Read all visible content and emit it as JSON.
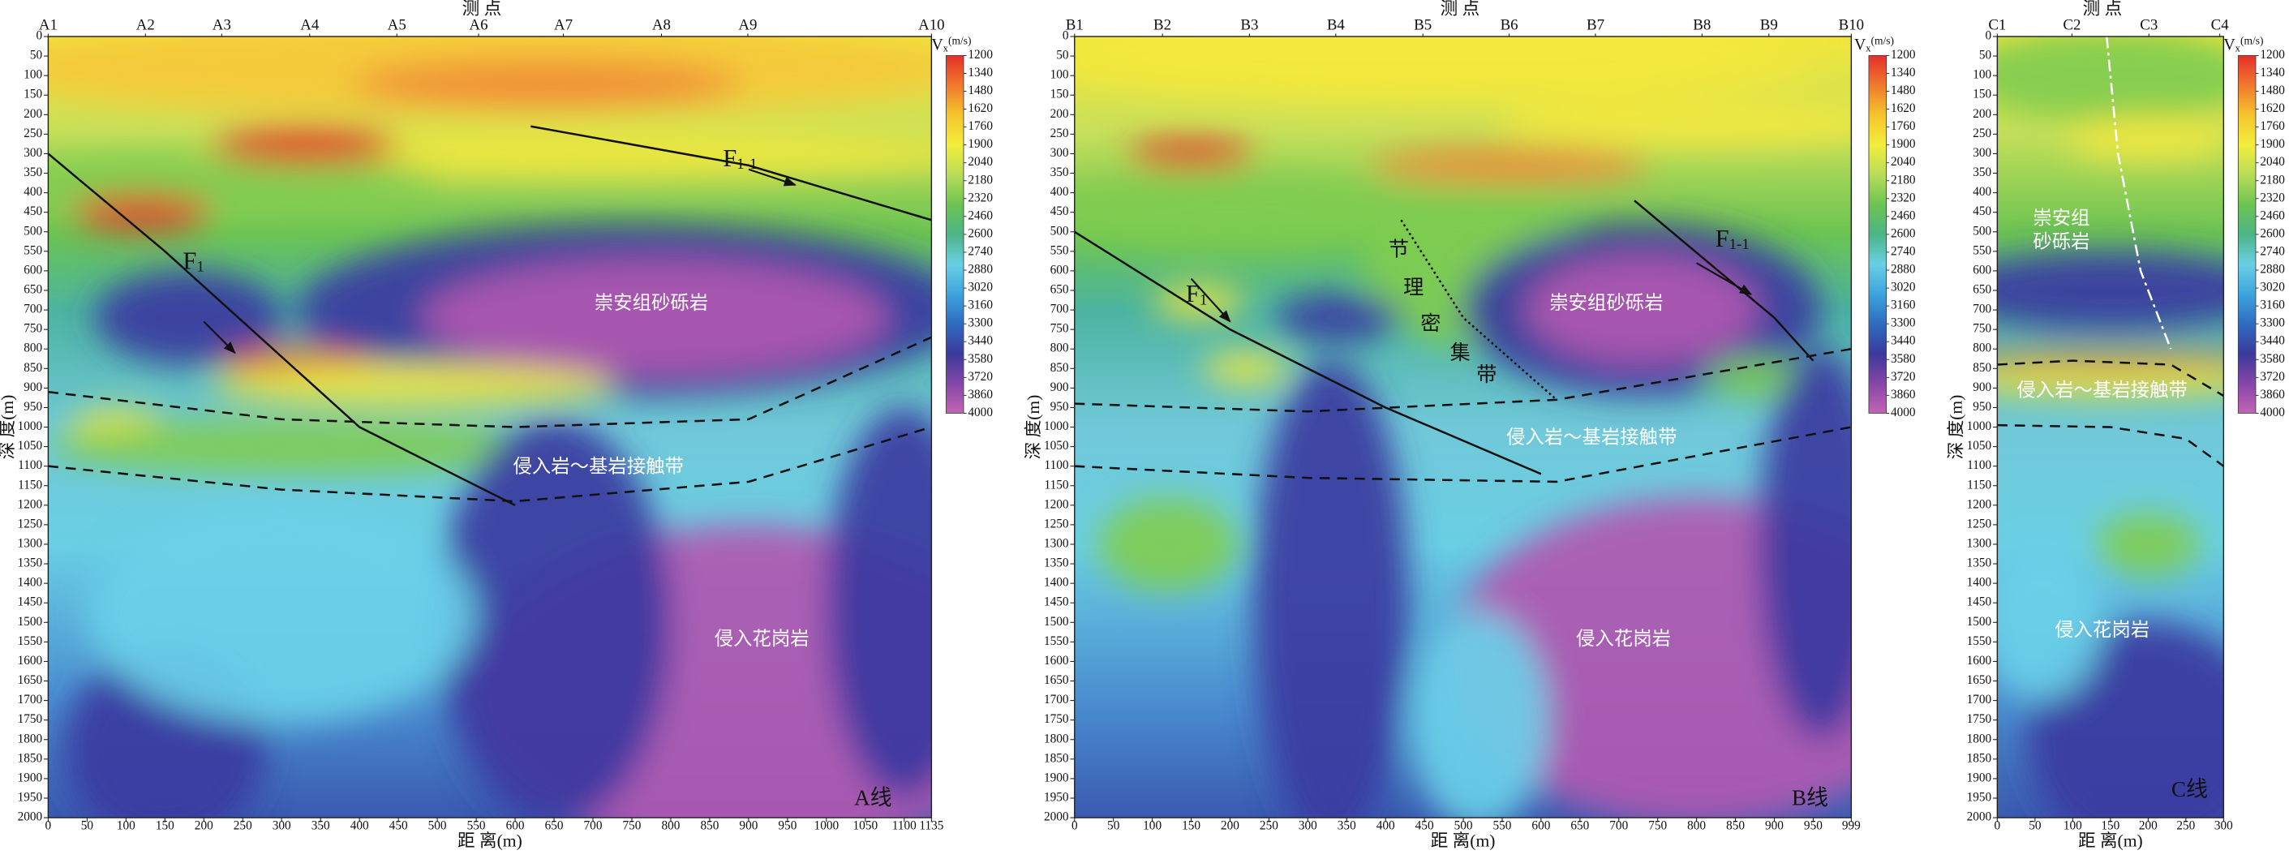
{
  "chart_data": [
    {
      "type": "heatmap",
      "title": "A线",
      "top_label": "测 点",
      "x_label": "距 离(m)",
      "y_label": "深 度(m)",
      "stations": [
        "A1",
        "A2",
        "A3",
        "A4",
        "A5",
        "A6",
        "A7",
        "A8",
        "A9",
        "A10"
      ],
      "station_x": [
        0,
        125,
        223,
        336,
        448,
        553,
        662,
        788,
        899,
        1135
      ],
      "xlim": [
        0,
        1135
      ],
      "xticks": [
        0,
        50,
        100,
        150,
        200,
        250,
        300,
        350,
        400,
        450,
        500,
        550,
        600,
        650,
        700,
        750,
        800,
        850,
        900,
        950,
        1000,
        1050,
        1100,
        1135
      ],
      "ylim": [
        0,
        2000
      ],
      "yticks": [
        0,
        50,
        100,
        150,
        200,
        250,
        300,
        350,
        400,
        450,
        500,
        550,
        600,
        650,
        700,
        750,
        800,
        850,
        900,
        950,
        1000,
        1050,
        1100,
        1150,
        1200,
        1250,
        1300,
        1350,
        1400,
        1450,
        1500,
        1550,
        1600,
        1650,
        1700,
        1750,
        1800,
        1850,
        1900,
        1950,
        2000
      ],
      "colorbar_symbol": "V",
      "colorbar_subscript": "x",
      "colorbar_unit": "(m/s)",
      "clim": [
        1200,
        4000
      ],
      "cticks": [
        1200,
        1340,
        1480,
        1620,
        1760,
        1900,
        2040,
        2180,
        2320,
        2460,
        2600,
        2740,
        2880,
        3020,
        3160,
        3300,
        3440,
        3580,
        3720,
        3860,
        4000
      ],
      "colorscale": [
        "#e5302a",
        "#f07a2c",
        "#f5c42c",
        "#f3ee3c",
        "#b8dc58",
        "#6cc452",
        "#4cb486",
        "#6acfe4",
        "#3da4de",
        "#2f6cc0",
        "#3a3a9c",
        "#8446a8",
        "#c464b4"
      ],
      "annotations": [
        "崇安组砂砾岩",
        "侵入岩～基岩接触带",
        "侵入花岗岩"
      ],
      "faults": [
        "F1",
        "F1-1"
      ]
    },
    {
      "type": "heatmap",
      "title": "B线",
      "top_label": "测 点",
      "x_label": "距 离(m)",
      "y_label": "深 度(m)",
      "stations": [
        "B1",
        "B2",
        "B3",
        "B4",
        "B5",
        "B6",
        "B7",
        "B8",
        "B9",
        "B10"
      ],
      "station_x": [
        0,
        113,
        225,
        336,
        448,
        559,
        670,
        807,
        893,
        999
      ],
      "xlim": [
        0,
        999
      ],
      "xticks": [
        0,
        50,
        100,
        150,
        200,
        250,
        300,
        350,
        400,
        450,
        500,
        550,
        600,
        650,
        700,
        750,
        800,
        850,
        900,
        950,
        999
      ],
      "ylim": [
        0,
        2000
      ],
      "yticks": [
        0,
        50,
        100,
        150,
        200,
        250,
        300,
        350,
        400,
        450,
        500,
        550,
        600,
        650,
        700,
        750,
        800,
        850,
        900,
        950,
        1000,
        1050,
        1100,
        1150,
        1200,
        1250,
        1300,
        1350,
        1400,
        1450,
        1500,
        1550,
        1600,
        1650,
        1700,
        1750,
        1800,
        1850,
        1900,
        1950,
        2000
      ],
      "colorbar_symbol": "V",
      "colorbar_subscript": "x",
      "colorbar_unit": "(m/s)",
      "clim": [
        1200,
        4000
      ],
      "cticks": [
        1200,
        1340,
        1480,
        1620,
        1760,
        1900,
        2040,
        2180,
        2320,
        2460,
        2600,
        2740,
        2880,
        3020,
        3160,
        3300,
        3440,
        3580,
        3720,
        3860,
        4000
      ],
      "colorscale": [
        "#e5302a",
        "#f07a2c",
        "#f5c42c",
        "#f3ee3c",
        "#b8dc58",
        "#6cc452",
        "#4cb486",
        "#6acfe4",
        "#3da4de",
        "#2f6cc0",
        "#3a3a9c",
        "#8446a8",
        "#c464b4"
      ],
      "annotations": [
        "崇安组砂砾岩",
        "侵入岩～基岩接触带",
        "侵入花岗岩"
      ],
      "faults": [
        "F1",
        "F1-1"
      ],
      "zone_chars": [
        "节",
        "理",
        "密",
        "集",
        "带"
      ]
    },
    {
      "type": "heatmap",
      "title": "C线",
      "top_label": "测 点",
      "x_label": "距 离(m)",
      "y_label": "深 度(m)",
      "stations": [
        "C1",
        "C2",
        "C3",
        "C4"
      ],
      "station_x": [
        0,
        99,
        201,
        295
      ],
      "xlim": [
        0,
        300
      ],
      "xticks": [
        0,
        50,
        100,
        150,
        200,
        250,
        300
      ],
      "ylim": [
        0,
        2000
      ],
      "yticks": [
        0,
        50,
        100,
        150,
        200,
        250,
        300,
        350,
        400,
        450,
        500,
        550,
        600,
        650,
        700,
        750,
        800,
        850,
        900,
        950,
        1000,
        1050,
        1100,
        1150,
        1200,
        1250,
        1300,
        1350,
        1400,
        1450,
        1500,
        1550,
        1600,
        1650,
        1700,
        1750,
        1800,
        1850,
        1900,
        1950,
        2000
      ],
      "colorbar_symbol": "V",
      "colorbar_subscript": "x",
      "colorbar_unit": "(m/s)",
      "clim": [
        1200,
        4000
      ],
      "cticks": [
        1200,
        1340,
        1480,
        1620,
        1760,
        1900,
        2040,
        2180,
        2320,
        2460,
        2600,
        2740,
        2880,
        3020,
        3160,
        3300,
        3440,
        3580,
        3720,
        3860,
        4000
      ],
      "colorscale": [
        "#e5302a",
        "#f07a2c",
        "#f5c42c",
        "#f3ee3c",
        "#b8dc58",
        "#6cc452",
        "#4cb486",
        "#6acfe4",
        "#3da4de",
        "#2f6cc0",
        "#3a3a9c",
        "#8446a8",
        "#c464b4"
      ],
      "annotations": [
        "崇安组",
        "砂砾岩",
        "侵入岩～基岩接触带",
        "侵入花岗岩"
      ]
    }
  ]
}
